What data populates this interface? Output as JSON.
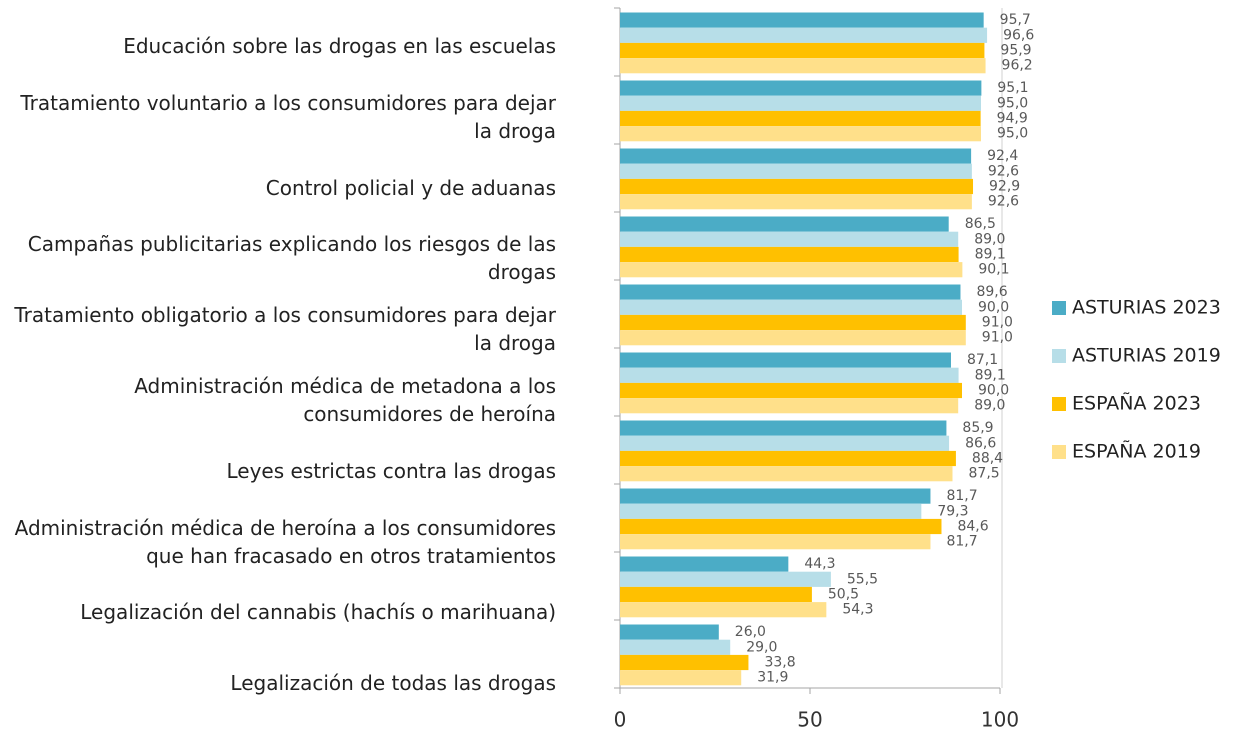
{
  "chart_data": {
    "type": "bar",
    "orientation": "horizontal",
    "categories": [
      "Educación sobre las drogas en las escuelas",
      "Tratamiento voluntario a los consumidores para dejar la droga",
      "Control policial y de aduanas",
      "Campañas publicitarias explicando los riesgos de las drogas",
      "Tratamiento obligatorio a los consumidores para dejar la droga",
      "Administración médica de metadona a los consumidores de heroína",
      "Leyes estrictas contra las drogas",
      "Administración médica de heroína a los consumidores que han fracasado en otros tratamientos",
      "Legalización del cannabis (hachís o marihuana)",
      "Legalización de todas las drogas"
    ],
    "series": [
      {
        "name": "ASTURIAS 2023",
        "color": "#4bacc6",
        "values": [
          95.7,
          95.1,
          92.4,
          86.5,
          89.6,
          87.1,
          85.9,
          81.7,
          44.3,
          26.0
        ],
        "value_labels": [
          "95,7",
          "95,1",
          "92,4",
          "86,5",
          "89,6",
          "87,1",
          "85,9",
          "81,7",
          "44,3",
          "26,0"
        ]
      },
      {
        "name": "ASTURIAS 2019",
        "color": "#b7dee8",
        "values": [
          96.6,
          95.0,
          92.6,
          89.0,
          90.0,
          89.1,
          86.6,
          79.3,
          55.5,
          29.0
        ],
        "value_labels": [
          "96,6",
          "95,0",
          "92,6",
          "89,0",
          "90,0",
          "89,1",
          "86,6",
          "79,3",
          "55,5",
          "29,0"
        ]
      },
      {
        "name": "ESPAÑA 2023",
        "color": "#ffc000",
        "values": [
          95.9,
          94.9,
          92.9,
          89.1,
          91.0,
          90.0,
          88.4,
          84.6,
          50.5,
          33.8
        ],
        "value_labels": [
          "95,9",
          "94,9",
          "92,9",
          "89,1",
          "91,0",
          "90,0",
          "88,4",
          "84,6",
          "50,5",
          "33,8"
        ]
      },
      {
        "name": "ESPAÑA 2019",
        "color": "#ffe08a",
        "values": [
          96.2,
          95.0,
          92.6,
          90.1,
          91.0,
          89.0,
          87.5,
          81.7,
          54.3,
          31.9
        ],
        "value_labels": [
          "96,2",
          "95,0",
          "92,6",
          "90,1",
          "91,0",
          "89,0",
          "87,5",
          "81,7",
          "54,3",
          "31,9"
        ]
      }
    ],
    "xlim": [
      0,
      100
    ],
    "xticks": [
      0,
      50,
      100
    ],
    "legend": "right"
  }
}
